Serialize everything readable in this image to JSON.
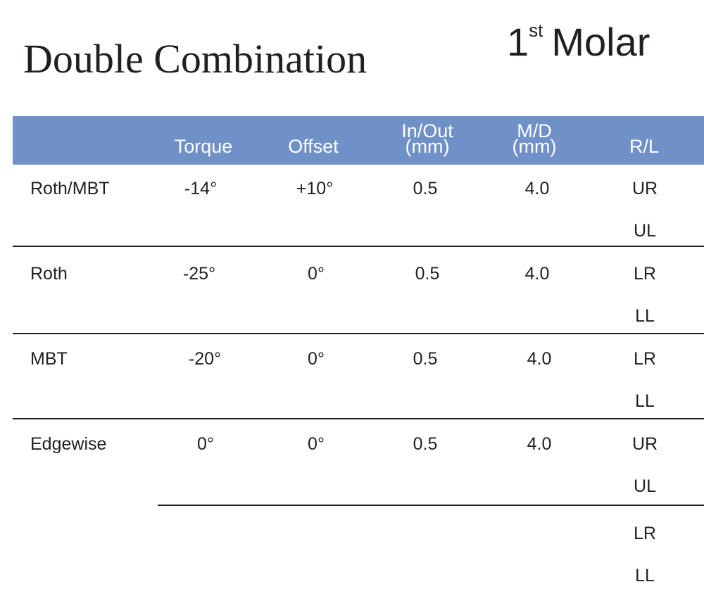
{
  "heading": {
    "title": "Double Combination",
    "tooth_number": "1",
    "tooth_suffix": "st",
    "tooth_name": "Molar"
  },
  "columns": {
    "torque": "Torque",
    "offset": "Offset",
    "inout_line1": "In/Out",
    "inout_line2": "(mm)",
    "md_line1": "M/D",
    "md_line2": "(mm)",
    "rl": "R/L"
  },
  "rows": [
    {
      "name": "Roth/MBT",
      "torque": "-14°",
      "offset": "+10°",
      "inout": "0.5",
      "md": "4.0",
      "rl": [
        "UR",
        "UL"
      ]
    },
    {
      "name": "Roth",
      "torque": "-25°",
      "offset": "0°",
      "inout": "0.5",
      "md": "4.0",
      "rl": [
        "LR",
        "LL"
      ]
    },
    {
      "name": "MBT",
      "torque": "-20°",
      "offset": "0°",
      "inout": "0.5",
      "md": "4.0",
      "rl": [
        "LR",
        "LL"
      ]
    },
    {
      "name": "Edgewise",
      "torque": "0°",
      "offset": "0°",
      "inout": "0.5",
      "md": "4.0",
      "rl": [
        "UR",
        "UL",
        "LR",
        "LL"
      ]
    }
  ],
  "colors": {
    "header_band": "#7090c8",
    "header_text": "#ffffff",
    "body_text": "#231f20"
  }
}
